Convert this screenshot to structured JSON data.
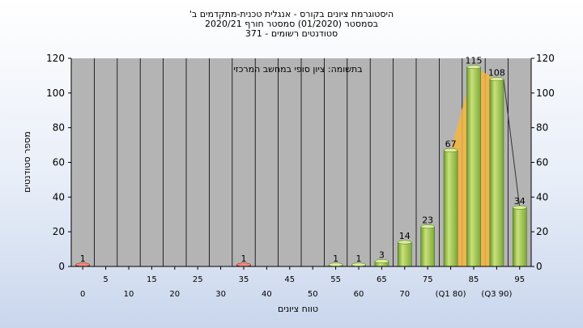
{
  "chart_data": {
    "type": "bar",
    "title_lines": [
      "היסטוגרמת ציונים בקורס - אנגלית טכנית-מתקדמים ב'",
      "בסמסטר  (01/2020)  סמסטר חורף 2020/21",
      "סטודנטים רשומים - 371"
    ],
    "annotation": "בתשומה: ציון סופי במחשב המרכזי",
    "xlabel": "טווח ציונים",
    "ylabel": "מספר סטודנטים",
    "ylim": [
      0,
      120
    ],
    "y_ticks": [
      0,
      20,
      40,
      60,
      80,
      100,
      120
    ],
    "x_bins": [
      0,
      5,
      10,
      15,
      20,
      25,
      30,
      35,
      40,
      45,
      50,
      55,
      60,
      65,
      70,
      75,
      80,
      85,
      90,
      95
    ],
    "x_tick_labels": [
      {
        "bin": 0,
        "text": "0",
        "row": 2
      },
      {
        "bin": 5,
        "text": "5",
        "row": 1
      },
      {
        "bin": 10,
        "text": "10",
        "row": 2
      },
      {
        "bin": 15,
        "text": "15",
        "row": 1
      },
      {
        "bin": 20,
        "text": "20",
        "row": 2
      },
      {
        "bin": 25,
        "text": "25",
        "row": 1
      },
      {
        "bin": 30,
        "text": "30",
        "row": 2
      },
      {
        "bin": 35,
        "text": "35",
        "row": 1
      },
      {
        "bin": 40,
        "text": "40",
        "row": 2
      },
      {
        "bin": 45,
        "text": "45",
        "row": 1
      },
      {
        "bin": 50,
        "text": "50",
        "row": 2
      },
      {
        "bin": 55,
        "text": "55",
        "row": 1
      },
      {
        "bin": 60,
        "text": "60",
        "row": 2
      },
      {
        "bin": 65,
        "text": "65",
        "row": 1
      },
      {
        "bin": 70,
        "text": "70",
        "row": 2
      },
      {
        "bin": 75,
        "text": "75",
        "row": 1
      },
      {
        "bin": 80,
        "text": "(Q1 80)",
        "row": 2
      },
      {
        "bin": 85,
        "text": "85",
        "row": 1
      },
      {
        "bin": 90,
        "text": "(Q3 90)",
        "row": 2
      },
      {
        "bin": 95,
        "text": "95",
        "row": 1
      }
    ],
    "bars": [
      {
        "bin": 0,
        "value": 1,
        "label": "1",
        "fail": true
      },
      {
        "bin": 35,
        "value": 1,
        "label": "1",
        "fail": true
      },
      {
        "bin": 55,
        "value": 1,
        "label": "1",
        "fail": false
      },
      {
        "bin": 60,
        "value": 1,
        "label": "1",
        "fail": false
      },
      {
        "bin": 65,
        "value": 3,
        "label": "3",
        "fail": false
      },
      {
        "bin": 70,
        "value": 14,
        "label": "14",
        "fail": false
      },
      {
        "bin": 75,
        "value": 23,
        "label": "23",
        "fail": false
      },
      {
        "bin": 80,
        "value": 67,
        "label": "67",
        "fail": false
      },
      {
        "bin": 85,
        "value": 115,
        "label": "115",
        "fail": false
      },
      {
        "bin": 90,
        "value": 108,
        "label": "108",
        "fail": false
      },
      {
        "bin": 95,
        "value": 34,
        "label": "34",
        "fail": false
      }
    ],
    "quartile_area": {
      "from_bin": 80,
      "to_bin": 90
    },
    "grid": false,
    "colors": {
      "plot_bg": "#b4b4b4",
      "bar_green": "#8fbc45",
      "bar_green_light": "#c8e27a",
      "bar_red": "#e23a2a",
      "quartile_fill": "#f5b540"
    }
  }
}
